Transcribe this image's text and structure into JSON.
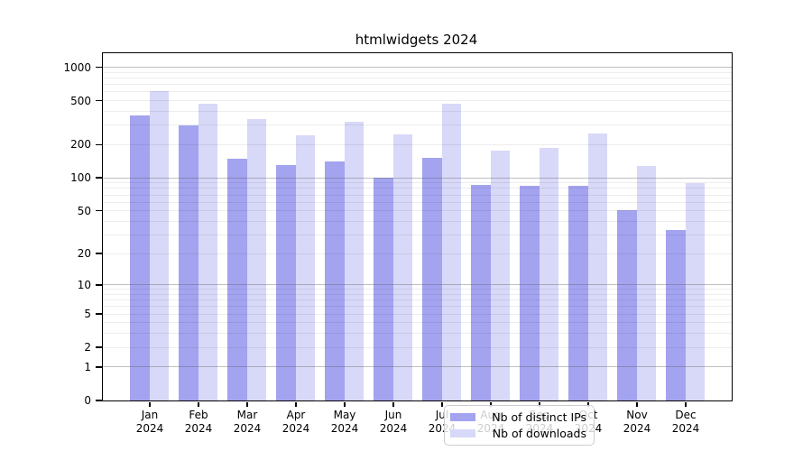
{
  "chart_data": {
    "type": "bar",
    "title": "htmlwidgets 2024",
    "categories": [
      "Jan 2024",
      "Feb 2024",
      "Mar 2024",
      "Apr 2024",
      "May 2024",
      "Jun 2024",
      "Jul 2024",
      "Aug 2024",
      "Sep 2024",
      "Oct 2024",
      "Nov 2024",
      "Dec 2024"
    ],
    "series": [
      {
        "name": "Nb of distinct IPs",
        "color": "#a3a3f0",
        "values": [
          365,
          300,
          150,
          130,
          140,
          100,
          152,
          87,
          84,
          84,
          51,
          33
        ]
      },
      {
        "name": "Nb of downloads",
        "color": "#d8d8f8",
        "values": [
          605,
          465,
          340,
          242,
          322,
          248,
          465,
          177,
          188,
          253,
          128,
          89
        ]
      }
    ],
    "y_axis": {
      "scale": "log1p",
      "tick_labels": [
        1000,
        500,
        200,
        100,
        50,
        20,
        10,
        5,
        2,
        1,
        0
      ],
      "range": [
        0,
        1000
      ]
    },
    "xlabel": "",
    "ylabel": "",
    "grid": true,
    "legend_position": "inside-bottom-center"
  }
}
